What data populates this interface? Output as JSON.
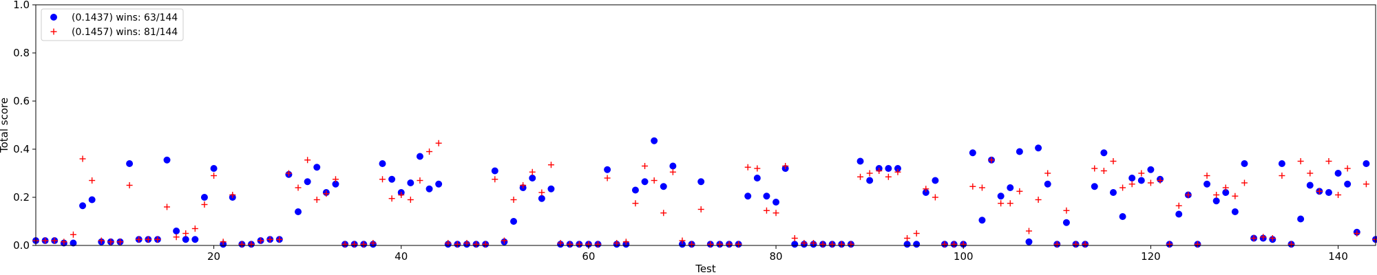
{
  "chart_data": {
    "type": "scatter",
    "xlabel": "Test",
    "ylabel": "Total score",
    "xlim": [
      1,
      144
    ],
    "ylim": [
      0,
      1.0
    ],
    "xticks": [
      20,
      40,
      60,
      80,
      100,
      120,
      140
    ],
    "yticks": [
      0.0,
      0.2,
      0.4,
      0.6,
      0.8,
      1.0
    ],
    "ytick_labels": [
      "0.0",
      "0.2",
      "0.4",
      "0.6",
      "0.8",
      "1.0"
    ],
    "legend_position": "top-left",
    "grid": false,
    "series": [
      {
        "name": "(0.1437) wins: 63/144",
        "color": "#0000ff",
        "marker": "circle",
        "values": [
          0.02,
          0.02,
          0.02,
          0.01,
          0.01,
          0.165,
          0.19,
          0.015,
          0.015,
          0.015,
          0.34,
          0.025,
          0.025,
          0.025,
          0.355,
          0.06,
          0.025,
          0.025,
          0.2,
          0.32,
          0.005,
          0.2,
          0.005,
          0.005,
          0.02,
          0.025,
          0.025,
          0.295,
          0.14,
          0.265,
          0.325,
          0.22,
          0.255,
          0.005,
          0.005,
          0.005,
          0.005,
          0.34,
          0.275,
          0.22,
          0.26,
          0.37,
          0.235,
          0.255,
          0.005,
          0.005,
          0.005,
          0.005,
          0.005,
          0.31,
          0.015,
          0.1,
          0.24,
          0.28,
          0.195,
          0.235,
          0.005,
          0.005,
          0.005,
          0.005,
          0.005,
          0.315,
          0.005,
          0.005,
          0.23,
          0.265,
          0.435,
          0.245,
          0.33,
          0.005,
          0.005,
          0.265,
          0.005,
          0.005,
          0.005,
          0.005,
          0.205,
          0.28,
          0.205,
          0.18,
          0.32,
          0.005,
          0.005,
          0.005,
          0.005,
          0.005,
          0.005,
          0.005,
          0.35,
          0.27,
          0.32,
          0.32,
          0.32,
          0.005,
          0.005,
          0.22,
          0.27,
          0.005,
          0.005,
          0.005,
          0.385,
          0.105,
          0.355,
          0.205,
          0.24,
          0.39,
          0.015,
          0.405,
          0.255,
          0.005,
          0.095,
          0.005,
          0.005,
          0.245,
          0.385,
          0.22,
          0.12,
          0.28,
          0.27,
          0.315,
          0.275,
          0.005,
          0.13,
          0.21,
          0.005,
          0.255,
          0.185,
          0.22,
          0.14,
          0.34,
          0.03,
          0.03,
          0.025,
          0.34,
          0.005,
          0.11,
          0.25,
          0.225,
          0.22,
          0.3,
          0.255,
          0.055,
          0.34,
          0.025
        ]
      },
      {
        "name": "(0.1457) wins: 81/144",
        "color": "#ff0000",
        "marker": "plus",
        "values": [
          0.02,
          0.02,
          0.02,
          0.015,
          0.045,
          0.36,
          0.27,
          0.02,
          0.015,
          0.015,
          0.25,
          0.025,
          0.025,
          0.025,
          0.16,
          0.035,
          0.05,
          0.07,
          0.17,
          0.29,
          0.015,
          0.21,
          0.005,
          0.005,
          0.02,
          0.025,
          0.025,
          0.3,
          0.24,
          0.355,
          0.19,
          0.215,
          0.275,
          0.005,
          0.005,
          0.005,
          0.01,
          0.275,
          0.195,
          0.21,
          0.19,
          0.27,
          0.39,
          0.425,
          0.01,
          0.005,
          0.01,
          0.005,
          0.005,
          0.275,
          0.02,
          0.19,
          0.25,
          0.305,
          0.22,
          0.335,
          0.01,
          0.005,
          0.005,
          0.005,
          0.005,
          0.28,
          0.01,
          0.015,
          0.175,
          0.33,
          0.27,
          0.135,
          0.305,
          0.02,
          0.005,
          0.15,
          0.005,
          0.005,
          0.005,
          0.005,
          0.325,
          0.32,
          0.145,
          0.135,
          0.33,
          0.03,
          0.01,
          0.01,
          0.005,
          0.005,
          0.005,
          0.005,
          0.285,
          0.3,
          0.31,
          0.285,
          0.305,
          0.03,
          0.05,
          0.235,
          0.2,
          0.005,
          0.005,
          0.005,
          0.245,
          0.24,
          0.355,
          0.175,
          0.175,
          0.225,
          0.06,
          0.19,
          0.3,
          0.005,
          0.145,
          0.005,
          0.005,
          0.32,
          0.31,
          0.35,
          0.24,
          0.255,
          0.3,
          0.26,
          0.27,
          0.005,
          0.165,
          0.21,
          0.005,
          0.29,
          0.21,
          0.24,
          0.205,
          0.26,
          0.03,
          0.035,
          0.03,
          0.29,
          0.005,
          0.35,
          0.3,
          0.225,
          0.35,
          0.21,
          0.32,
          0.05,
          0.255,
          0.025
        ]
      }
    ]
  }
}
